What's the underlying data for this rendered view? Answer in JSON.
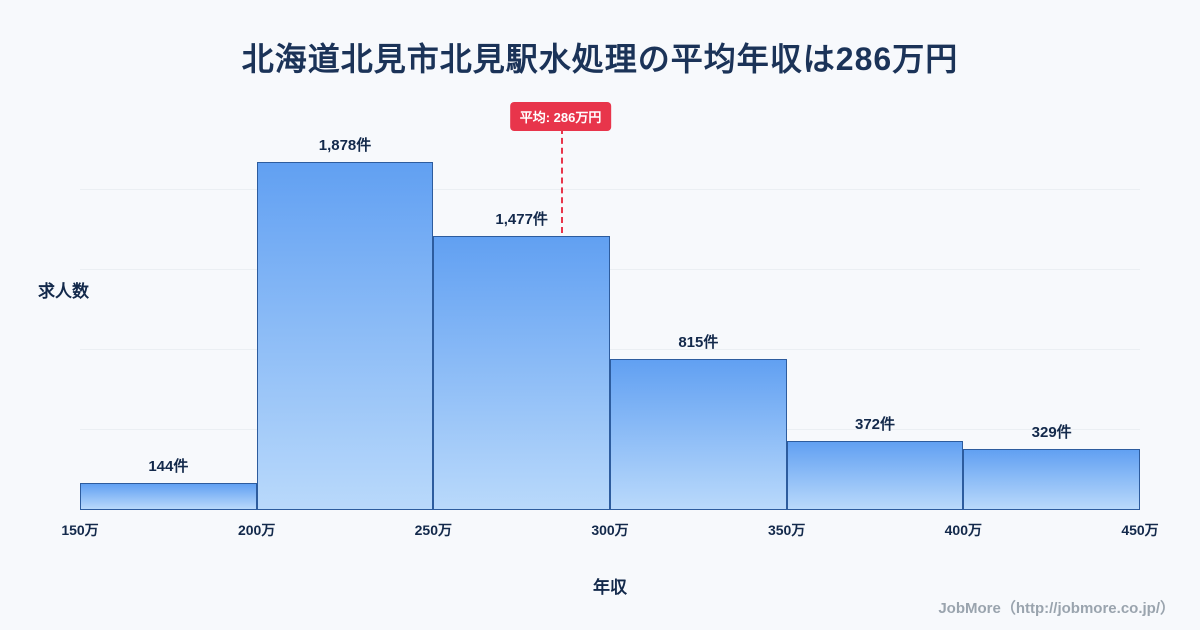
{
  "title": "北海道北見市北見駅水処理の平均年収は286万円",
  "chart_data": {
    "type": "bar",
    "subtype": "histogram",
    "bin_edges": [
      150,
      200,
      250,
      300,
      350,
      400,
      450
    ],
    "bin_edge_labels": [
      "150万",
      "200万",
      "250万",
      "300万",
      "350万",
      "400万",
      "450万"
    ],
    "values": [
      144,
      1878,
      1477,
      815,
      372,
      329
    ],
    "value_labels": [
      "144件",
      "1,878件",
      "1,477件",
      "815件",
      "372件",
      "329件"
    ],
    "title": "北海道北見市北見駅水処理の平均年収は286万円",
    "xlabel": "年収",
    "ylabel": "求人数",
    "x_range": [
      150,
      450
    ],
    "ylim": [
      0,
      2000
    ],
    "grid": "faint-horizontal",
    "legend": false,
    "average": 286,
    "average_label": "平均: 286万円"
  },
  "footer": {
    "credit": "JobMore（http://jobmore.co.jp/）"
  },
  "colors": {
    "background": "#f7f9fc",
    "title": "#1b3358",
    "text": "#13294b",
    "bar_top": "#61a0f2",
    "bar_bottom": "#b9d9fb",
    "bar_border": "#2d5c9e",
    "average_line": "#e8354b",
    "average_badge_bg": "#e8354b",
    "average_badge_text": "#ffffff",
    "footer_text": "#9aa4ae"
  }
}
